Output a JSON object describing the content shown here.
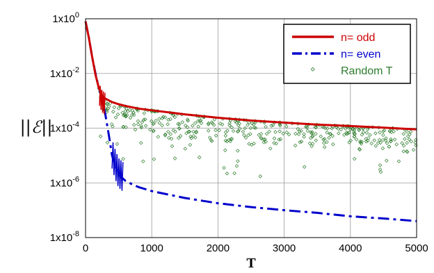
{
  "chart_data": {
    "type": "line",
    "xlabel": "T",
    "ylabel": "||ℰ||",
    "xlim": [
      0,
      5000
    ],
    "ylim": [
      1e-08,
      1
    ],
    "yscale": "log",
    "grid": true,
    "legend_position": "top-right",
    "x_ticks": [
      "0",
      "1000",
      "2000",
      "3000",
      "4000",
      "5000"
    ],
    "y_ticks": [
      {
        "mantissa": "1x10",
        "exp": "0",
        "value": 1
      },
      {
        "mantissa": "1x10",
        "exp": "-2",
        "value": 0.01
      },
      {
        "mantissa": "1x10",
        "exp": "-4",
        "value": 0.0001
      },
      {
        "mantissa": "1x10",
        "exp": "-6",
        "value": 1e-06
      },
      {
        "mantissa": "1x10",
        "exp": "-8",
        "value": 1e-08
      }
    ],
    "series": [
      {
        "name": "n= odd",
        "color": "#cc0000",
        "style": "solid",
        "x": [
          0,
          50,
          100,
          150,
          200,
          250,
          300,
          400,
          500,
          600,
          800,
          1000,
          1500,
          2000,
          2500,
          3000,
          3500,
          4000,
          4500,
          5000
        ],
        "y": [
          0.8,
          0.2,
          0.04,
          0.009,
          0.003,
          0.0015,
          0.0012,
          0.0009,
          0.00075,
          0.00065,
          0.00052,
          0.00045,
          0.00032,
          0.00024,
          0.00019,
          0.00016,
          0.000135,
          0.00012,
          0.000105,
          9e-05
        ]
      },
      {
        "name": "n= even",
        "color": "#0000cc",
        "style": "dashdot",
        "x": [
          0,
          50,
          100,
          150,
          200,
          250,
          300,
          350,
          400,
          450,
          500,
          600,
          700,
          800,
          1000,
          1500,
          2000,
          2500,
          3000,
          3500,
          4000,
          4500,
          5000
        ],
        "y": [
          0.8,
          0.2,
          0.04,
          0.01,
          0.003,
          0.0012,
          0.0003,
          6e-05,
          1e-05,
          4e-06,
          2e-06,
          1.2e-06,
          9e-07,
          7e-07,
          5e-07,
          2.8e-07,
          1.8e-07,
          1.3e-07,
          1e-07,
          8e-08,
          6e-08,
          5e-08,
          4e-08
        ]
      },
      {
        "name": "Random T",
        "color": "#2e7d2e",
        "style": "markers"
      }
    ]
  }
}
